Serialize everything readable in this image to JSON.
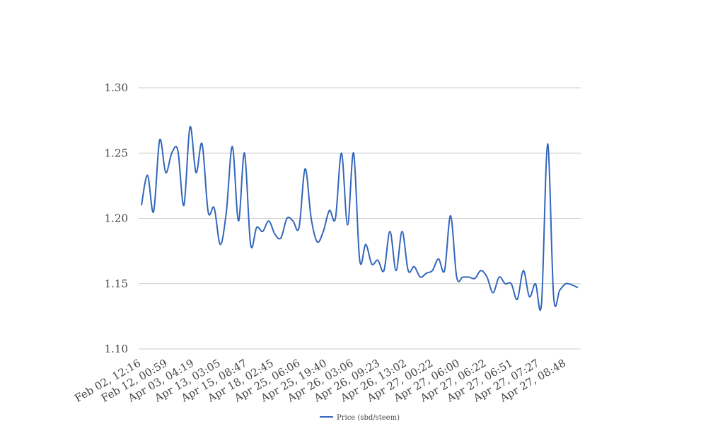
{
  "chart_data": {
    "type": "line",
    "title": "",
    "xlabel": "",
    "ylabel": "",
    "ylim": [
      1.1,
      1.3
    ],
    "y_ticks": [
      "1.30",
      "1.25",
      "1.20",
      "1.15",
      "1.10"
    ],
    "grid": true,
    "legend_position": "bottom",
    "x_tick_labels": [
      "Feb 02, 12:16",
      "Feb 12, 00:59",
      "Apr 03, 04:19",
      "Apr 13, 03:05",
      "Apr 15, 08:47",
      "Apr 18, 02:45",
      "Apr 25, 06:06",
      "Apr 25, 19:40",
      "Apr 26, 03:06",
      "Apr 26, 09:23",
      "Apr 26, 13:02",
      "Apr 27, 00:22",
      "Apr 27, 06:00",
      "Apr 27, 06:22",
      "Apr 27, 06:51",
      "Apr 27, 07:27",
      "Apr 27, 08:48"
    ],
    "series": [
      {
        "name": "Price (sbd/steem)",
        "color": "#3366bb",
        "values": [
          1.21,
          1.233,
          1.205,
          1.26,
          1.235,
          1.25,
          1.252,
          1.21,
          1.27,
          1.235,
          1.257,
          1.205,
          1.208,
          1.18,
          1.205,
          1.255,
          1.198,
          1.25,
          1.18,
          1.193,
          1.19,
          1.198,
          1.188,
          1.185,
          1.2,
          1.198,
          1.193,
          1.238,
          1.2,
          1.182,
          1.19,
          1.206,
          1.2,
          1.25,
          1.195,
          1.25,
          1.168,
          1.18,
          1.165,
          1.168,
          1.16,
          1.19,
          1.16,
          1.19,
          1.16,
          1.163,
          1.155,
          1.158,
          1.16,
          1.169,
          1.16,
          1.202,
          1.155,
          1.155,
          1.155,
          1.154,
          1.16,
          1.155,
          1.143,
          1.155,
          1.15,
          1.15,
          1.138,
          1.16,
          1.14,
          1.15,
          1.135,
          1.257,
          1.14,
          1.145,
          1.15,
          1.149,
          1.147
        ]
      }
    ]
  }
}
